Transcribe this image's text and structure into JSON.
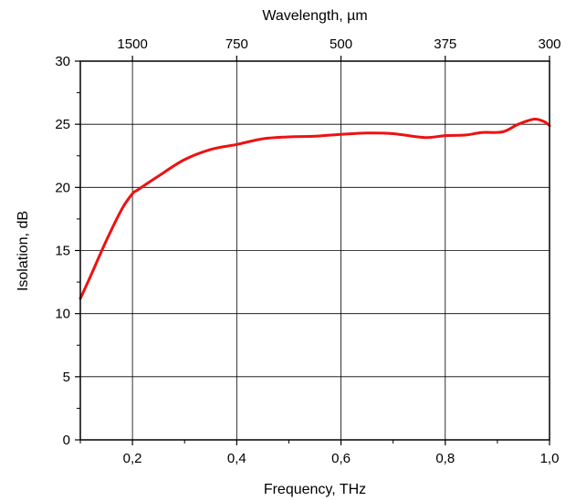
{
  "chart_data": {
    "type": "line",
    "title": "",
    "xlabel": "Frequency, THz",
    "ylabel": "Isolation, dB",
    "top_xlabel": "Wavelength, µm",
    "xlim": [
      0.1,
      1.0
    ],
    "ylim": [
      0,
      30
    ],
    "grid": true,
    "x_ticks": [
      0.2,
      0.4,
      0.6,
      0.8,
      1.0
    ],
    "x_tick_labels": [
      "0,2",
      "0,4",
      "0,6",
      "0,8",
      "1,0"
    ],
    "y_ticks": [
      0,
      5,
      10,
      15,
      20,
      25,
      30
    ],
    "y_tick_labels": [
      "0",
      "5",
      "10",
      "15",
      "20",
      "25",
      "30"
    ],
    "top_ticks": [
      1500,
      750,
      500,
      375,
      300
    ],
    "top_tick_labels": [
      "1500",
      "750",
      "500",
      "375",
      "300"
    ],
    "series": [
      {
        "color": "#ee1111",
        "x": [
          0.1,
          0.12,
          0.15,
          0.18,
          0.2,
          0.21,
          0.25,
          0.3,
          0.35,
          0.4,
          0.45,
          0.5,
          0.55,
          0.6,
          0.65,
          0.7,
          0.76,
          0.8,
          0.84,
          0.87,
          0.91,
          0.94,
          0.97,
          0.99,
          1.0
        ],
        "y": [
          11.2,
          13.0,
          15.8,
          18.3,
          19.5,
          19.8,
          20.9,
          22.2,
          23.0,
          23.4,
          23.85,
          24.0,
          24.05,
          24.2,
          24.3,
          24.25,
          23.95,
          24.1,
          24.15,
          24.35,
          24.4,
          25.0,
          25.4,
          25.2,
          24.9
        ]
      }
    ]
  }
}
